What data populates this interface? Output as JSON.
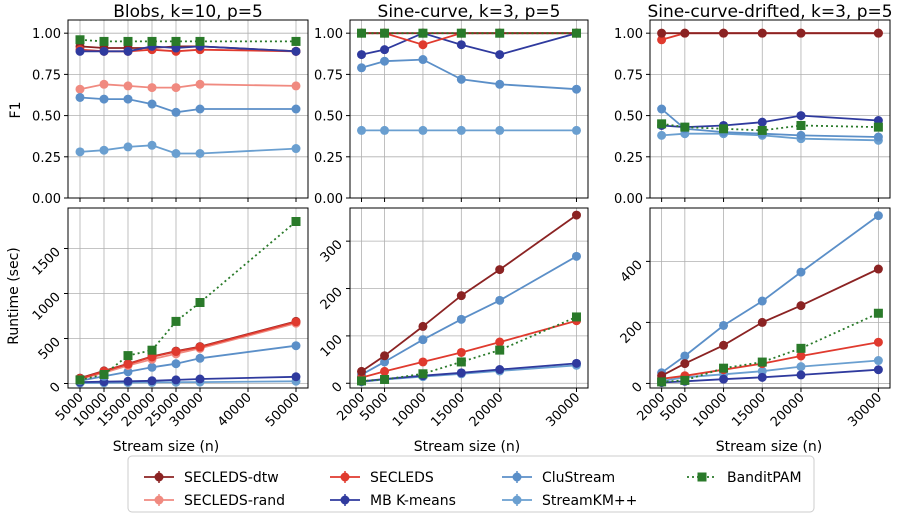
{
  "figure": {
    "ylabel_f1": "F1",
    "ylabel_runtime": "Runtime (sec)",
    "xlabel": "Stream size (n)"
  },
  "colors": {
    "SECLEDS-dtw": "#8b2323",
    "SECLEDS-rand": "#f08a80",
    "SECLEDS": "#e03a2e",
    "MB K-means": "#2f3a9e",
    "CluStream": "#5b8fc8",
    "StreamKM++": "#6a9fd0",
    "BanditPAM": "#2a7a2a"
  },
  "legend": {
    "items": [
      "SECLEDS-dtw",
      "SECLEDS-rand",
      "SECLEDS",
      "MB K-means",
      "CluStream",
      "StreamKM++",
      "BanditPAM"
    ]
  },
  "chart_data": [
    {
      "type": "line",
      "panel": "blobs-f1",
      "title": "Blobs, k=10, p=5",
      "xlabel": "",
      "ylabel": "F1",
      "x": [
        5000,
        10000,
        15000,
        20000,
        25000,
        30000,
        50000
      ],
      "xlim": [
        2500,
        52500
      ],
      "ylim": [
        0,
        1.08
      ],
      "xticks": [
        5000,
        10000,
        15000,
        20000,
        25000,
        30000,
        40000,
        50000
      ],
      "yticks": [
        0.0,
        0.25,
        0.5,
        0.75,
        1.0
      ],
      "ytick_labels": [
        "0.00",
        "0.25",
        "0.50",
        "0.75",
        "1.00"
      ],
      "show_xticklabels": false,
      "series": [
        {
          "name": "SECLEDS-rand",
          "values": [
            0.66,
            0.69,
            0.68,
            0.67,
            0.67,
            0.69,
            0.68
          ]
        },
        {
          "name": "CluStream",
          "values": [
            0.61,
            0.6,
            0.6,
            0.57,
            0.52,
            0.54,
            0.54
          ]
        },
        {
          "name": "StreamKM++",
          "values": [
            0.28,
            0.29,
            0.31,
            0.32,
            0.27,
            0.27,
            0.3
          ]
        },
        {
          "name": "SECLEDS-dtw",
          "values": [
            0.92,
            0.91,
            0.91,
            0.91,
            0.92,
            0.92,
            0.89
          ]
        },
        {
          "name": "SECLEDS",
          "values": [
            0.9,
            0.89,
            0.89,
            0.9,
            0.89,
            0.9,
            0.89
          ]
        },
        {
          "name": "MB K-means",
          "values": [
            0.89,
            0.89,
            0.89,
            0.92,
            0.91,
            0.92,
            0.89
          ]
        },
        {
          "name": "BanditPAM",
          "values": [
            0.96,
            0.95,
            0.95,
            0.95,
            0.95,
            0.95,
            0.95
          ]
        }
      ]
    },
    {
      "type": "line",
      "panel": "sine-f1",
      "title": "Sine-curve, k=3, p=5",
      "xlabel": "",
      "ylabel": "",
      "x": [
        2000,
        5000,
        10000,
        15000,
        20000,
        30000
      ],
      "xlim": [
        500,
        31500
      ],
      "ylim": [
        0,
        1.08
      ],
      "xticks": [
        2000,
        5000,
        10000,
        15000,
        20000,
        30000
      ],
      "yticks": [
        0.0,
        0.25,
        0.5,
        0.75,
        1.0
      ],
      "ytick_labels": [
        "0.00",
        "0.25",
        "0.50",
        "0.75",
        "1.00"
      ],
      "show_xticklabels": false,
      "series": [
        {
          "name": "StreamKM++",
          "values": [
            0.41,
            0.41,
            0.41,
            0.41,
            0.41,
            0.41
          ]
        },
        {
          "name": "CluStream",
          "values": [
            0.79,
            0.83,
            0.84,
            0.72,
            0.69,
            0.66
          ]
        },
        {
          "name": "MB K-means",
          "values": [
            0.87,
            0.9,
            1.0,
            0.93,
            0.87,
            1.0
          ]
        },
        {
          "name": "SECLEDS",
          "values": [
            1.0,
            1.0,
            0.93,
            1.0,
            1.0,
            1.0
          ]
        },
        {
          "name": "SECLEDS-dtw",
          "values": [
            1.0,
            1.0,
            1.0,
            1.0,
            1.0,
            1.0
          ]
        },
        {
          "name": "BanditPAM",
          "values": [
            1.0,
            1.0,
            1.0,
            1.0,
            1.0,
            1.0
          ]
        }
      ]
    },
    {
      "type": "line",
      "panel": "drift-f1",
      "title": "Sine-curve-drifted, k=3, p=5",
      "xlabel": "",
      "ylabel": "",
      "x": [
        2000,
        5000,
        10000,
        15000,
        20000,
        30000
      ],
      "xlim": [
        500,
        31500
      ],
      "ylim": [
        0,
        1.08
      ],
      "xticks": [
        2000,
        5000,
        10000,
        15000,
        20000,
        30000
      ],
      "yticks": [
        0.0,
        0.25,
        0.5,
        0.75,
        1.0
      ],
      "ytick_labels": [
        "0.00",
        "0.25",
        "0.50",
        "0.75",
        "1.00"
      ],
      "show_xticklabels": false,
      "series": [
        {
          "name": "StreamKM++",
          "values": [
            0.38,
            0.39,
            0.39,
            0.38,
            0.36,
            0.35
          ]
        },
        {
          "name": "CluStream",
          "values": [
            0.54,
            0.42,
            0.4,
            0.39,
            0.38,
            0.37
          ]
        },
        {
          "name": "MB K-means",
          "values": [
            0.44,
            0.43,
            0.44,
            0.46,
            0.5,
            0.47
          ]
        },
        {
          "name": "BanditPAM",
          "values": [
            0.45,
            0.43,
            0.42,
            0.41,
            0.44,
            0.43
          ]
        },
        {
          "name": "SECLEDS",
          "values": [
            0.96,
            1.0,
            1.0,
            1.0,
            1.0,
            1.0
          ]
        },
        {
          "name": "SECLEDS-dtw",
          "values": [
            1.0,
            1.0,
            1.0,
            1.0,
            1.0,
            1.0
          ]
        }
      ]
    },
    {
      "type": "line",
      "panel": "blobs-runtime",
      "title": "",
      "xlabel": "Stream size (n)",
      "ylabel": "Runtime (sec)",
      "x": [
        5000,
        10000,
        15000,
        20000,
        25000,
        30000,
        50000
      ],
      "xlim": [
        2500,
        52500
      ],
      "ylim": [
        -50,
        1950
      ],
      "xticks": [
        5000,
        10000,
        15000,
        20000,
        25000,
        30000,
        40000,
        50000
      ],
      "xtick_labels": [
        "5000",
        "10000",
        "15000",
        "20000",
        "25000",
        "30000",
        "40000",
        "50000"
      ],
      "yticks": [
        0,
        500,
        1000,
        1500
      ],
      "ytick_labels": [
        "0",
        "500",
        "1000",
        "1500"
      ],
      "show_xticklabels": true,
      "series": [
        {
          "name": "StreamKM++",
          "values": [
            5,
            8,
            10,
            12,
            14,
            16,
            25
          ]
        },
        {
          "name": "MB K-means",
          "values": [
            15,
            20,
            25,
            30,
            40,
            50,
            75
          ]
        },
        {
          "name": "CluStream",
          "values": [
            30,
            80,
            130,
            180,
            220,
            280,
            420
          ]
        },
        {
          "name": "SECLEDS-rand",
          "values": [
            50,
            120,
            200,
            270,
            330,
            390,
            670
          ]
        },
        {
          "name": "SECLEDS-dtw",
          "values": [
            60,
            140,
            220,
            300,
            360,
            410,
            690
          ]
        },
        {
          "name": "SECLEDS",
          "values": [
            55,
            135,
            215,
            295,
            355,
            405,
            685
          ]
        },
        {
          "name": "BanditPAM",
          "values": [
            40,
            100,
            310,
            370,
            690,
            900,
            1800
          ]
        }
      ]
    },
    {
      "type": "line",
      "panel": "sine-runtime",
      "title": "",
      "xlabel": "Stream size (n)",
      "ylabel": "",
      "x": [
        2000,
        5000,
        10000,
        15000,
        20000,
        30000
      ],
      "xlim": [
        500,
        31500
      ],
      "ylim": [
        -10,
        370
      ],
      "xticks": [
        2000,
        5000,
        10000,
        15000,
        20000,
        30000
      ],
      "xtick_labels": [
        "2000",
        "5000",
        "10000",
        "15000",
        "20000",
        "30000"
      ],
      "yticks": [
        0,
        100,
        200,
        300
      ],
      "ytick_labels": [
        "0",
        "100",
        "200",
        "300"
      ],
      "show_xticklabels": true,
      "series": [
        {
          "name": "StreamKM++",
          "values": [
            3,
            8,
            14,
            20,
            26,
            38
          ]
        },
        {
          "name": "MB K-means",
          "values": [
            4,
            9,
            16,
            22,
            29,
            42
          ]
        },
        {
          "name": "CluStream",
          "values": [
            18,
            45,
            92,
            135,
            175,
            268
          ]
        },
        {
          "name": "SECLEDS",
          "values": [
            12,
            25,
            45,
            65,
            87,
            132
          ]
        },
        {
          "name": "SECLEDS-dtw",
          "values": [
            25,
            58,
            120,
            185,
            240,
            355
          ]
        },
        {
          "name": "BanditPAM",
          "values": [
            5,
            8,
            20,
            45,
            70,
            140
          ]
        }
      ]
    },
    {
      "type": "line",
      "panel": "drift-runtime",
      "title": "",
      "xlabel": "Stream size (n)",
      "ylabel": "",
      "x": [
        2000,
        5000,
        10000,
        15000,
        20000,
        30000
      ],
      "xlim": [
        500,
        31500
      ],
      "ylim": [
        -15,
        575
      ],
      "xticks": [
        2000,
        5000,
        10000,
        15000,
        20000,
        30000
      ],
      "xtick_labels": [
        "2000",
        "5000",
        "10000",
        "15000",
        "20000",
        "30000"
      ],
      "yticks": [
        0,
        200,
        400
      ],
      "ytick_labels": [
        "0",
        "200",
        "400"
      ],
      "show_xticklabels": true,
      "series": [
        {
          "name": "StreamKM++",
          "values": [
            8,
            20,
            30,
            40,
            55,
            75
          ]
        },
        {
          "name": "MB K-means",
          "values": [
            3,
            7,
            14,
            20,
            28,
            45
          ]
        },
        {
          "name": "CluStream",
          "values": [
            35,
            90,
            190,
            270,
            365,
            550
          ]
        },
        {
          "name": "SECLEDS",
          "values": [
            15,
            25,
            45,
            65,
            90,
            135
          ]
        },
        {
          "name": "SECLEDS-dtw",
          "values": [
            25,
            65,
            125,
            200,
            255,
            375
          ]
        },
        {
          "name": "BanditPAM",
          "values": [
            5,
            10,
            50,
            70,
            115,
            230
          ]
        }
      ]
    }
  ]
}
